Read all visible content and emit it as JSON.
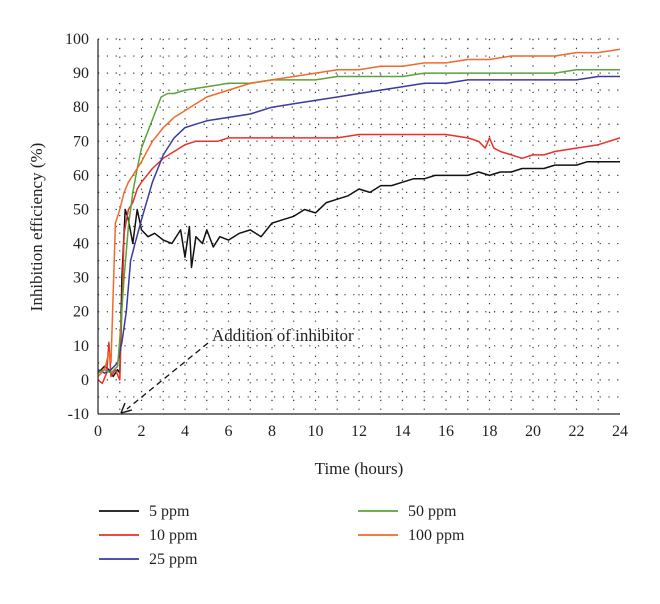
{
  "chart_data": {
    "type": "line",
    "title": "",
    "xlabel": "Time (hours)",
    "ylabel": "Inhibition efficiency (%)",
    "xlim": [
      0,
      24
    ],
    "ylim": [
      -10,
      100
    ],
    "xticks": [
      0,
      2,
      4,
      6,
      8,
      10,
      12,
      14,
      16,
      18,
      20,
      22,
      24
    ],
    "yticks": [
      -10,
      0,
      10,
      20,
      30,
      40,
      50,
      60,
      70,
      80,
      90,
      100
    ],
    "grid": "dotted",
    "legend_position": "bottom",
    "annotation": {
      "text": "Addition of inhibitor",
      "points_to": {
        "x": 1,
        "y": -10
      }
    },
    "series": [
      {
        "name": "5 ppm",
        "color": "#111111",
        "x": [
          0,
          0.3,
          0.5,
          0.7,
          0.9,
          1.0,
          1.1,
          1.25,
          1.4,
          1.6,
          1.8,
          2.0,
          2.3,
          2.6,
          3.0,
          3.4,
          3.8,
          4.0,
          4.2,
          4.3,
          4.5,
          4.8,
          5.0,
          5.3,
          5.6,
          6.0,
          6.5,
          7.0,
          7.5,
          8.0,
          8.5,
          9.0,
          9.5,
          10.0,
          10.5,
          11.0,
          11.5,
          12.0,
          12.5,
          13.0,
          13.5,
          14.0,
          14.5,
          15.0,
          15.5,
          16.0,
          16.5,
          17.0,
          17.5,
          18.0,
          18.5,
          19.0,
          19.5,
          20.0,
          20.5,
          21.0,
          21.5,
          22.0,
          22.5,
          23.0,
          23.5,
          24.0
        ],
        "y": [
          2,
          4,
          3,
          1,
          3,
          2,
          30,
          50,
          47,
          40,
          50,
          44,
          42,
          43,
          41,
          40,
          44,
          36,
          45,
          33,
          42,
          40,
          44,
          39,
          42,
          41,
          43,
          44,
          42,
          46,
          47,
          48,
          50,
          49,
          52,
          53,
          54,
          56,
          55,
          57,
          57,
          58,
          59,
          59,
          60,
          60,
          60,
          60,
          61,
          60,
          61,
          61,
          62,
          62,
          62,
          63,
          63,
          63,
          64,
          64,
          64,
          64
        ]
      },
      {
        "name": "10 ppm",
        "color": "#e8312a",
        "x": [
          0,
          0.2,
          0.4,
          0.5,
          0.6,
          0.8,
          1.0,
          1.2,
          1.4,
          1.6,
          1.8,
          2.0,
          2.5,
          3.0,
          3.5,
          4.0,
          4.5,
          5.0,
          5.5,
          6.0,
          7.0,
          8.0,
          9.0,
          10.0,
          11.0,
          12.0,
          13.0,
          14.0,
          15.0,
          16.0,
          17.0,
          17.5,
          17.8,
          18.0,
          18.2,
          18.5,
          19.0,
          19.5,
          20.0,
          20.5,
          21.0,
          22.0,
          23.0,
          24.0
        ],
        "y": [
          0,
          -1,
          2,
          11,
          1,
          3,
          0,
          43,
          50,
          52,
          56,
          58,
          62,
          65,
          67,
          69,
          70,
          70,
          70,
          71,
          71,
          71,
          71,
          71,
          71,
          72,
          72,
          72,
          72,
          72,
          71,
          70,
          68,
          71,
          68,
          67,
          66,
          65,
          66,
          66,
          67,
          68,
          69,
          71
        ]
      },
      {
        "name": "25 ppm",
        "color": "#3a3aa0",
        "x": [
          0,
          0.3,
          0.6,
          0.9,
          1.1,
          1.3,
          1.5,
          1.7,
          2.0,
          2.5,
          3.0,
          3.5,
          4.0,
          4.5,
          5.0,
          6.0,
          7.0,
          8.0,
          9.0,
          10.0,
          11.0,
          12.0,
          13.0,
          14.0,
          15.0,
          16.0,
          17.0,
          18.0,
          19.0,
          20.0,
          21.0,
          22.0,
          23.0,
          24.0
        ],
        "y": [
          3,
          2,
          3,
          5,
          11,
          20,
          35,
          40,
          47,
          58,
          66,
          71,
          74,
          75,
          76,
          77,
          78,
          80,
          81,
          82,
          83,
          84,
          85,
          86,
          87,
          87,
          88,
          88,
          88,
          88,
          88,
          88,
          89,
          89
        ]
      },
      {
        "name": "50 ppm",
        "color": "#5ca23a",
        "x": [
          0,
          0.3,
          0.6,
          0.9,
          1.0,
          1.2,
          1.4,
          1.6,
          1.8,
          2.0,
          2.3,
          2.6,
          2.9,
          3.2,
          3.5,
          4.0,
          5.0,
          6.0,
          7.0,
          8.0,
          9.0,
          10.0,
          11.0,
          12.0,
          13.0,
          14.0,
          15.0,
          16.0,
          17.0,
          18.0,
          19.0,
          20.0,
          21.0,
          22.0,
          23.0,
          24.0
        ],
        "y": [
          2,
          3,
          2,
          4,
          12,
          30,
          45,
          55,
          62,
          68,
          73,
          78,
          83,
          84,
          84,
          85,
          86,
          87,
          87,
          88,
          88,
          88,
          89,
          89,
          89,
          89,
          90,
          90,
          90,
          90,
          90,
          90,
          90,
          91,
          91,
          91
        ]
      },
      {
        "name": "100 ppm",
        "color": "#f2692a",
        "x": [
          0,
          0.3,
          0.5,
          0.6,
          0.8,
          1.0,
          1.2,
          1.4,
          1.6,
          1.8,
          2.0,
          2.5,
          3.0,
          3.5,
          4.0,
          4.5,
          5.0,
          6.0,
          7.0,
          8.0,
          9.0,
          10.0,
          11.0,
          12.0,
          13.0,
          14.0,
          15.0,
          16.0,
          17.0,
          18.0,
          19.0,
          20.0,
          21.0,
          22.0,
          23.0,
          24.0
        ],
        "y": [
          1,
          3,
          8,
          5,
          46,
          50,
          55,
          58,
          60,
          62,
          64,
          70,
          74,
          77,
          79,
          81,
          83,
          85,
          87,
          88,
          89,
          90,
          91,
          91,
          92,
          92,
          93,
          93,
          94,
          94,
          95,
          95,
          95,
          96,
          96,
          97
        ]
      }
    ]
  }
}
